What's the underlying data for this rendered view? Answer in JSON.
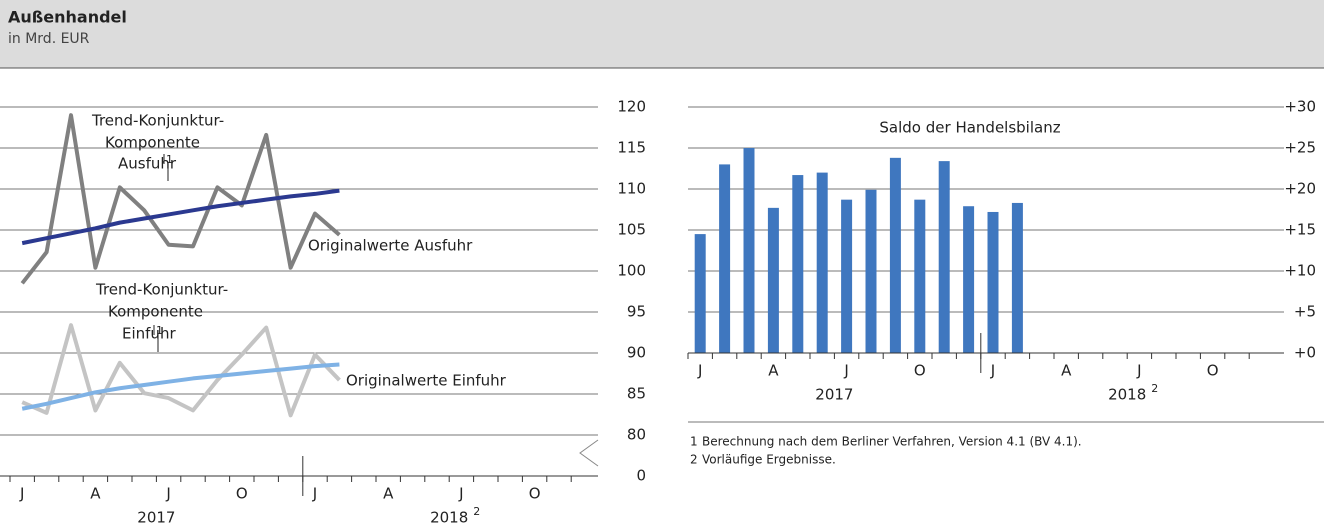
{
  "header": {
    "title": "Außenhandel",
    "subtitle": "in Mrd. EUR"
  },
  "chart_data": [
    {
      "type": "line",
      "categories": [
        "J",
        null,
        null,
        "A",
        null,
        null,
        "J",
        null,
        null,
        "O",
        null,
        null,
        "J",
        null,
        null,
        "A",
        null,
        null,
        "J",
        null,
        null,
        "O",
        null,
        null
      ],
      "years": [
        {
          "label": "2017"
        },
        {
          "label": "2018",
          "note": "2"
        }
      ],
      "ylim": [
        0,
        120
      ],
      "axis_break": [
        0,
        80
      ],
      "yticks": [
        0,
        80,
        85,
        90,
        95,
        100,
        105,
        110,
        115,
        120
      ],
      "grid": true,
      "series": [
        {
          "name": "Originalwerte Ausfuhr",
          "color": "#808080",
          "values": [
            98.5,
            102.3,
            119,
            100.4,
            110.2,
            107.4,
            103.2,
            103,
            110.2,
            108,
            116.6,
            100.4,
            107,
            104.4,
            null,
            null,
            null,
            null,
            null,
            null,
            null,
            null,
            null,
            null
          ]
        },
        {
          "name_lines": [
            "Trend-Konjunktur-",
            "Komponente",
            "Ausfuhr"
          ],
          "note": "1",
          "color": "#2b3990",
          "values": [
            103.4,
            104,
            104.6,
            105.2,
            105.9,
            106.4,
            106.9,
            107.4,
            107.9,
            108.3,
            108.7,
            109.1,
            109.4,
            109.8,
            null,
            null,
            null,
            null,
            null,
            null,
            null,
            null,
            null,
            null
          ]
        },
        {
          "name": "Originalwerte Einfuhr",
          "color": "#c4c4c4",
          "values": [
            84,
            82.7,
            93.4,
            83,
            88.8,
            85.1,
            84.5,
            83,
            86.7,
            89.8,
            93.1,
            82.4,
            89.8,
            86.7,
            null,
            null,
            null,
            null,
            null,
            null,
            null,
            null,
            null,
            null
          ]
        },
        {
          "name_lines": [
            "Trend-Konjunktur-",
            "Komponente",
            "Einfuhr"
          ],
          "note": "1",
          "color": "#7fb2e5",
          "values": [
            83.2,
            83.8,
            84.5,
            85.2,
            85.7,
            86.1,
            86.5,
            86.9,
            87.2,
            87.5,
            87.8,
            88.1,
            88.4,
            88.6,
            null,
            null,
            null,
            null,
            null,
            null,
            null,
            null,
            null,
            null
          ]
        }
      ]
    },
    {
      "type": "bar",
      "title": "Saldo der Handelsbilanz",
      "color": "#3f77bf",
      "categories": [
        "J",
        null,
        null,
        "A",
        null,
        null,
        "J",
        null,
        null,
        "O",
        null,
        null,
        "J",
        null,
        null,
        "A",
        null,
        null,
        "J",
        null,
        null,
        "O",
        null,
        null
      ],
      "years": [
        {
          "label": "2017"
        },
        {
          "label": "2018",
          "note": "2"
        }
      ],
      "values": [
        14.5,
        23,
        25,
        17.7,
        21.7,
        22,
        18.7,
        19.9,
        23.8,
        18.7,
        23.4,
        17.9,
        17.2,
        18.3,
        null,
        null,
        null,
        null,
        null,
        null,
        null,
        null,
        null,
        null
      ],
      "ylim": [
        0,
        30
      ],
      "yticks": [
        {
          "value": 0,
          "label": "+0"
        },
        {
          "value": 5,
          "label": "+5"
        },
        {
          "value": 10,
          "label": "+10"
        },
        {
          "value": 15,
          "label": "+15"
        },
        {
          "value": 20,
          "label": "+20"
        },
        {
          "value": 25,
          "label": "+25"
        },
        {
          "value": 30,
          "label": "+30"
        }
      ],
      "grid": true
    }
  ],
  "footnotes": [
    {
      "mark": "1",
      "text": "Berechnung nach dem Berliner Verfahren, Version 4.1 (BV 4.1)."
    },
    {
      "mark": "2",
      "text": "Vorläufige Ergebnisse."
    }
  ]
}
